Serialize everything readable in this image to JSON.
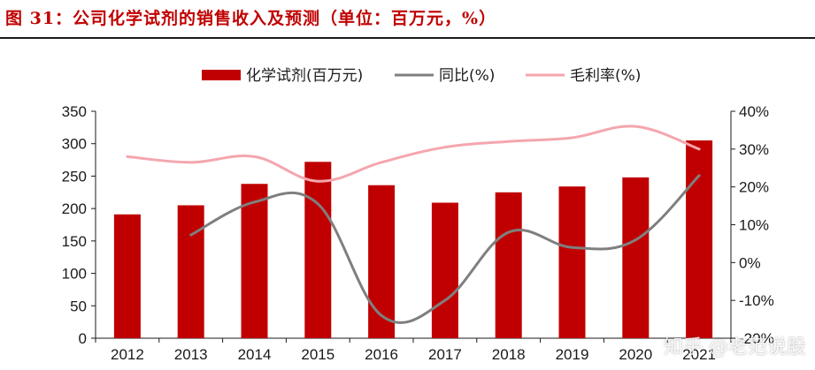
{
  "figure": {
    "title": "图 31：公司化学试剂的销售收入及预测（单位：百万元，%）",
    "watermark": "知乎 @老范说股"
  },
  "colors": {
    "bar": "#c00000",
    "yoy_line": "#7f7f7f",
    "margin_line": "#f4a6ae",
    "title": "#c00000"
  },
  "chart_data": {
    "type": "bar",
    "categories": [
      "2012",
      "2013",
      "2014",
      "2015",
      "2016",
      "2017",
      "2018",
      "2019",
      "2020",
      "2021"
    ],
    "series": [
      {
        "name": "化学试剂(百万元)",
        "type": "bar",
        "axis": "left",
        "values": [
          191,
          205,
          238,
          272,
          236,
          209,
          225,
          234,
          248,
          305
        ]
      },
      {
        "name": "同比(%)",
        "type": "line",
        "axis": "right",
        "values": [
          null,
          7.3,
          16.0,
          15.5,
          -14.0,
          -10.0,
          8.0,
          4.0,
          6.0,
          23.0
        ]
      },
      {
        "name": "毛利率(%)",
        "type": "line",
        "axis": "right",
        "values": [
          28.0,
          26.5,
          28.0,
          21.5,
          26.5,
          30.5,
          32.0,
          33.0,
          36.0,
          30.0
        ]
      }
    ],
    "ylim_left": [
      0,
      350
    ],
    "yticks_left": [
      "0",
      "50",
      "100",
      "150",
      "200",
      "250",
      "300",
      "350"
    ],
    "ylim_right": [
      -20,
      40
    ],
    "yticks_right": [
      "-20%",
      "-10%",
      "0%",
      "10%",
      "20%",
      "30%",
      "40%"
    ],
    "legend": [
      "化学试剂(百万元)",
      "同比(%)",
      "毛利率(%)"
    ],
    "legend_position": "top",
    "grid": false
  }
}
